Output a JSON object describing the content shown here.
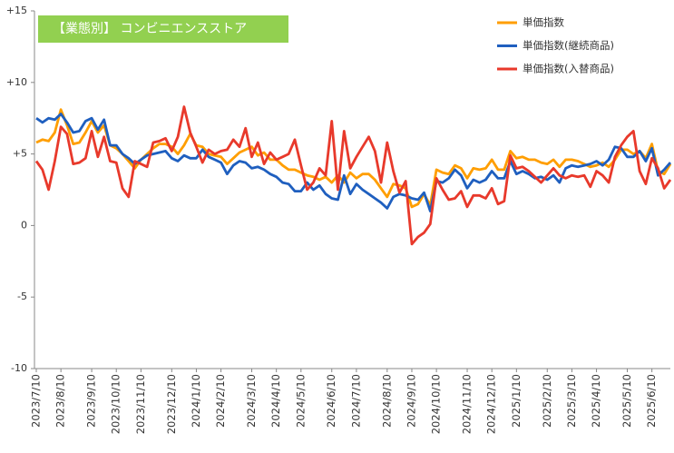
{
  "chart_data": {
    "type": "line",
    "title": "【業態別】 コンビニエンスストア",
    "categories": [
      "2023/7/10",
      null,
      null,
      null,
      "2023/8/10",
      null,
      null,
      null,
      null,
      "2023/9/10",
      null,
      null,
      null,
      "2023/10/10",
      null,
      null,
      null,
      "2023/11/10",
      null,
      null,
      null,
      null,
      "2023/12/10",
      null,
      null,
      null,
      "2024/1/10",
      null,
      null,
      null,
      "2024/2/10",
      null,
      null,
      null,
      null,
      "2024/3/10",
      null,
      null,
      null,
      "2024/4/10",
      null,
      null,
      null,
      "2024/5/10",
      null,
      null,
      null,
      null,
      "2024/6/10",
      null,
      null,
      null,
      "2024/7/10",
      null,
      null,
      null,
      null,
      "2024/8/10",
      null,
      null,
      null,
      "2024/9/10",
      null,
      null,
      null,
      "2024/10/10",
      null,
      null,
      null,
      null,
      "2024/11/10",
      null,
      null,
      null,
      "2024/12/10",
      null,
      null,
      null,
      "2025/1/10",
      null,
      null,
      null,
      null,
      "2025/2/10",
      null,
      null,
      null,
      "2025/3/10",
      null,
      null,
      null,
      "2025/4/10",
      null,
      null,
      null,
      null,
      "2025/5/10",
      null,
      null,
      null,
      "2025/6/10",
      null,
      null,
      null
    ],
    "series": [
      {
        "name": "単価指数",
        "color": "#ff9e00",
        "values": [
          5.8,
          6.0,
          5.9,
          6.5,
          8.1,
          7.0,
          5.7,
          5.8,
          6.5,
          7.3,
          6.5,
          7.0,
          5.6,
          5.4,
          5.0,
          4.5,
          4.0,
          4.6,
          5.0,
          5.4,
          5.7,
          5.7,
          5.5,
          5.0,
          5.6,
          6.4,
          5.6,
          5.5,
          5.0,
          4.9,
          4.8,
          4.3,
          4.7,
          5.1,
          5.3,
          5.5,
          4.9,
          5.1,
          4.6,
          4.6,
          4.2,
          3.9,
          3.9,
          3.7,
          3.5,
          3.4,
          3.2,
          3.4,
          3.0,
          3.5,
          3.0,
          3.7,
          3.3,
          3.6,
          3.6,
          3.2,
          2.6,
          2.0,
          2.9,
          2.8,
          2.6,
          1.3,
          1.5,
          2.2,
          1.4,
          3.9,
          3.7,
          3.6,
          4.2,
          4.0,
          3.3,
          4.0,
          3.9,
          4.0,
          4.6,
          3.9,
          3.9,
          5.2,
          4.7,
          4.8,
          4.6,
          4.6,
          4.4,
          4.3,
          4.6,
          4.1,
          4.6,
          4.6,
          4.5,
          4.3,
          4.1,
          4.2,
          4.4,
          4.1,
          4.6,
          5.3,
          5.3,
          5.0,
          5.2,
          4.7,
          5.7,
          3.8,
          3.6,
          4.3
        ]
      },
      {
        "name": "単価指数(継続商品)",
        "color": "#1f5fbf",
        "values": [
          7.5,
          7.2,
          7.5,
          7.4,
          7.8,
          7.2,
          6.5,
          6.6,
          7.3,
          7.5,
          6.7,
          7.4,
          5.6,
          5.6,
          5.0,
          4.7,
          4.3,
          4.6,
          4.9,
          5.0,
          5.1,
          5.2,
          4.7,
          4.5,
          4.9,
          4.7,
          4.7,
          5.3,
          4.8,
          4.6,
          4.4,
          3.6,
          4.2,
          4.5,
          4.4,
          4.0,
          4.1,
          3.9,
          3.6,
          3.4,
          3.0,
          2.9,
          2.4,
          2.4,
          3.0,
          2.5,
          2.8,
          2.2,
          1.9,
          1.8,
          3.5,
          2.2,
          2.9,
          2.5,
          2.2,
          1.9,
          1.6,
          1.2,
          2.0,
          2.2,
          2.1,
          1.9,
          1.8,
          2.3,
          1.0,
          3.1,
          3.0,
          3.3,
          3.9,
          3.5,
          2.6,
          3.2,
          3.0,
          3.2,
          3.8,
          3.3,
          3.3,
          4.5,
          3.6,
          3.8,
          3.6,
          3.3,
          3.4,
          3.2,
          3.5,
          3.0,
          4.0,
          4.2,
          4.1,
          4.2,
          4.3,
          4.5,
          4.2,
          4.6,
          5.5,
          5.4,
          4.8,
          4.8,
          5.2,
          4.5,
          5.4,
          3.5,
          3.9,
          4.4
        ]
      },
      {
        "name": "単価指数(入替商品)",
        "color": "#e8392b",
        "values": [
          4.5,
          3.9,
          2.5,
          4.5,
          6.9,
          6.4,
          4.3,
          4.4,
          4.7,
          6.6,
          4.8,
          6.2,
          4.5,
          4.4,
          2.6,
          2.0,
          4.5,
          4.3,
          4.1,
          5.8,
          5.9,
          6.1,
          5.2,
          6.2,
          8.3,
          6.5,
          5.5,
          4.4,
          5.3,
          5.0,
          5.2,
          5.3,
          6.0,
          5.5,
          6.8,
          4.8,
          5.8,
          4.3,
          5.1,
          4.6,
          4.8,
          5.0,
          6.0,
          4.2,
          2.5,
          3.0,
          4.0,
          3.5,
          7.3,
          2.5,
          6.6,
          4.0,
          4.8,
          5.5,
          6.2,
          5.2,
          3.0,
          5.8,
          3.8,
          2.3,
          3.1,
          -1.3,
          -0.8,
          -0.5,
          0.1,
          3.3,
          2.5,
          1.8,
          1.9,
          2.4,
          1.3,
          2.1,
          2.1,
          1.9,
          2.6,
          1.5,
          1.7,
          4.9,
          4.0,
          4.1,
          3.8,
          3.4,
          3.0,
          3.5,
          4.0,
          3.5,
          3.3,
          3.5,
          3.4,
          3.5,
          2.7,
          3.8,
          3.5,
          3.0,
          4.8,
          5.6,
          6.2,
          6.6,
          3.8,
          2.9,
          4.7,
          4.0,
          2.6,
          3.2
        ]
      }
    ],
    "ylim": [
      -10,
      15
    ],
    "yticks": [
      -10,
      -5,
      0,
      {
        "value": 5,
        "label": "+5"
      },
      {
        "value": 10,
        "label": "+10"
      },
      {
        "value": 15,
        "label": "+15"
      }
    ],
    "grid": false
  }
}
